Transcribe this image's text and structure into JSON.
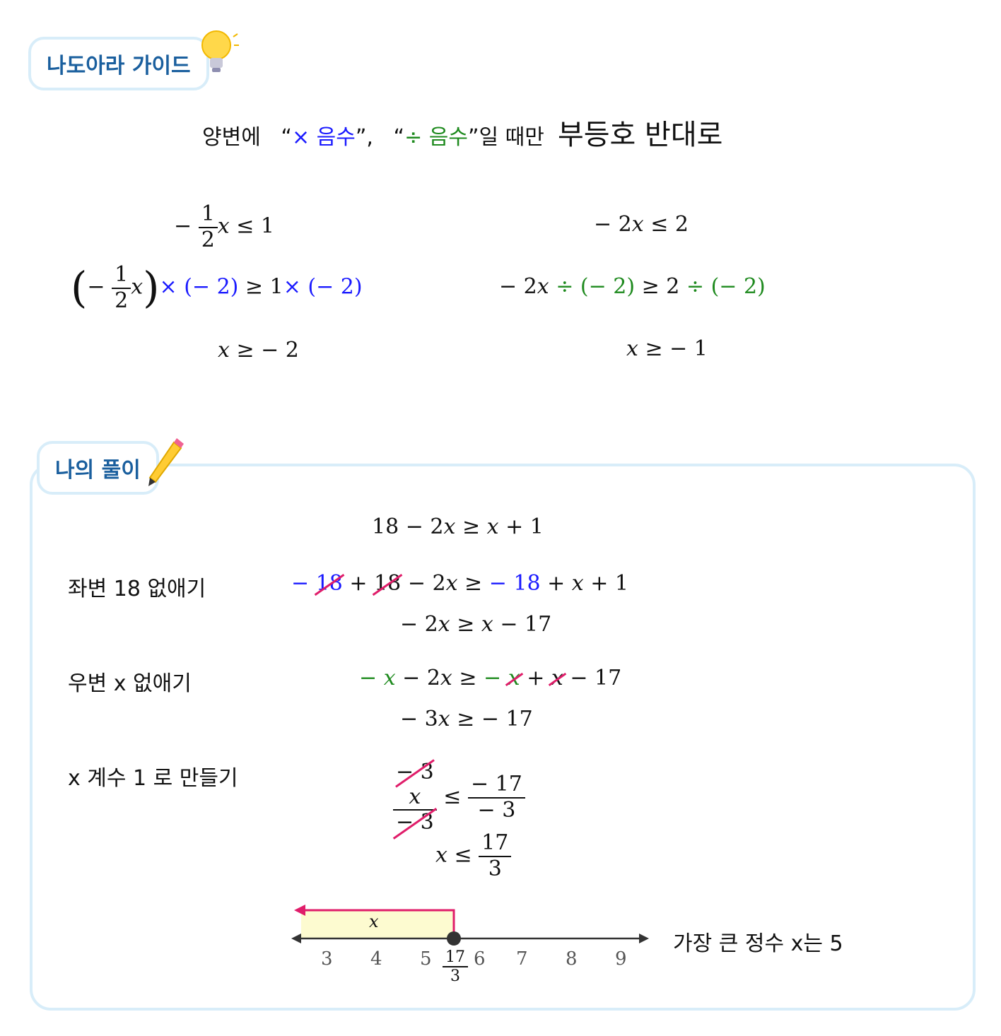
{
  "guide": {
    "tab_title": "나도아라 가이드",
    "rule": {
      "prefix": "양변에",
      "q1": "× 음수",
      "sep": ",",
      "q2": "÷ 음수",
      "suffix": "일 때만",
      "emph": "부등호 반대로"
    },
    "left_example": [
      "− ½x ≤ 1",
      "(− ½x) × (− 2) ≥ 1 × (− 2)",
      "x ≥ − 2"
    ],
    "right_example": [
      "− 2x ≤ 2",
      "− 2x ÷ (− 2) ≥ 2 ÷ (− 2)",
      "x ≥ − 1"
    ]
  },
  "solution": {
    "tab_title": "나의 풀이",
    "step_labels": [
      "좌변 18 없애기",
      "우변 x 없애기",
      "x 계수 1 로 만들기"
    ],
    "number_line_ticks": [
      "3",
      "4",
      "5",
      "17/3",
      "6",
      "7",
      "8",
      "9"
    ],
    "region_label": "x",
    "conclusion": "가장 큰 정수 x는 5"
  },
  "colors": {
    "blue": "#1a1aff",
    "green": "#1e8a1e",
    "strike": "#e01d6a",
    "accent": "#1a5f9e",
    "border": "#d8edf9"
  }
}
